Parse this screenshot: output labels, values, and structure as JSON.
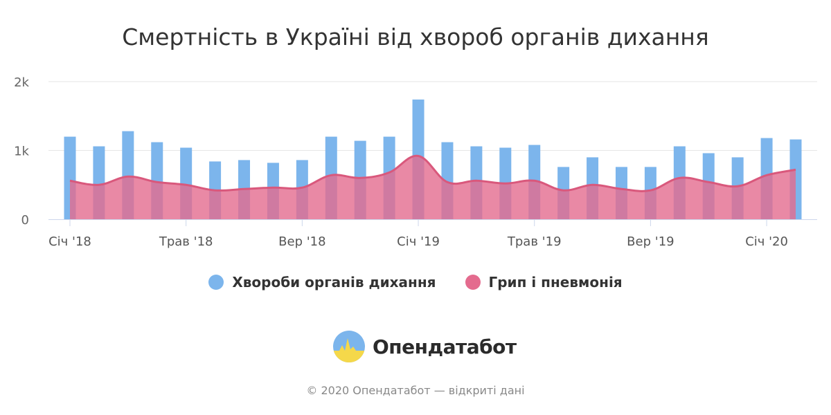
{
  "chart_data": {
    "type": "bar",
    "title": "Смертність в Україні від хвороб органів дихання",
    "x": [
      "2018-01",
      "2018-02",
      "2018-03",
      "2018-04",
      "2018-05",
      "2018-06",
      "2018-07",
      "2018-08",
      "2018-09",
      "2018-10",
      "2018-11",
      "2018-12",
      "2019-01",
      "2019-02",
      "2019-03",
      "2019-04",
      "2019-05",
      "2019-06",
      "2019-07",
      "2019-08",
      "2019-09",
      "2019-10",
      "2019-11",
      "2019-12",
      "2020-01",
      "2020-02"
    ],
    "x_tick_labels": [
      {
        "x": "2018-01",
        "label": "Січ '18"
      },
      {
        "x": "2018-05",
        "label": "Трав '18"
      },
      {
        "x": "2018-09",
        "label": "Вер '18"
      },
      {
        "x": "2019-01",
        "label": "Січ '19"
      },
      {
        "x": "2019-05",
        "label": "Трав '19"
      },
      {
        "x": "2019-09",
        "label": "Вер '19"
      },
      {
        "x": "2020-01",
        "label": "Січ '20"
      }
    ],
    "y_ticks": [
      {
        "value": 0,
        "label": "0"
      },
      {
        "value": 1000,
        "label": "1k"
      },
      {
        "value": 2000,
        "label": "2k"
      }
    ],
    "ylim": [
      0,
      2000
    ],
    "grid": true,
    "legend_position": "bottom",
    "series": [
      {
        "name": "Хвороби органів дихання",
        "type": "bar",
        "color": "#7cb5ec",
        "values": [
          1200,
          1060,
          1280,
          1120,
          1040,
          840,
          860,
          820,
          860,
          1200,
          1140,
          1200,
          1740,
          1120,
          1060,
          1040,
          1080,
          760,
          900,
          760,
          760,
          1060,
          960,
          900,
          1180,
          1160
        ]
      },
      {
        "name": "Грип і пневмонія",
        "type": "area",
        "color": "#e46b8e",
        "values": [
          560,
          500,
          620,
          540,
          500,
          420,
          440,
          460,
          460,
          640,
          600,
          680,
          920,
          540,
          560,
          520,
          560,
          420,
          500,
          440,
          420,
          600,
          540,
          480,
          640,
          720
        ]
      }
    ]
  },
  "legend": {
    "item1": "Хвороби органів дихання",
    "item2": "Грип і пневмонія"
  },
  "brand": {
    "name": "Опендатабот",
    "logo_icon": "opendatabot-logo-icon"
  },
  "footer": {
    "text": "© 2020 Опендатабот — відкриті дані"
  }
}
